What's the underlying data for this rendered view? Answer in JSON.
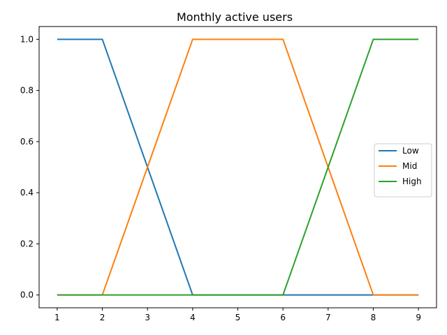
{
  "chart_data": {
    "type": "line",
    "title": "Monthly active users",
    "xlabel": "",
    "ylabel": "",
    "x": [
      1,
      2,
      3,
      4,
      5,
      6,
      7,
      8,
      9
    ],
    "xlim": [
      0.6,
      9.4
    ],
    "ylim": [
      -0.05,
      1.05
    ],
    "xticks": [
      1,
      2,
      3,
      4,
      5,
      6,
      7,
      8,
      9
    ],
    "yticks": [
      0.0,
      0.2,
      0.4,
      0.6,
      0.8,
      1.0
    ],
    "ytick_labels": [
      "0.0",
      "0.2",
      "0.4",
      "0.6",
      "0.8",
      "1.0"
    ],
    "grid": false,
    "legend_position": "right",
    "series": [
      {
        "name": "Low",
        "color": "#1f77b4",
        "values": [
          1.0,
          1.0,
          0.5,
          0.0,
          0.0,
          0.0,
          0.0,
          0.0,
          0.0
        ]
      },
      {
        "name": "Mid",
        "color": "#ff7f0e",
        "values": [
          0.0,
          0.0,
          0.5,
          1.0,
          1.0,
          1.0,
          0.5,
          0.0,
          0.0
        ]
      },
      {
        "name": "High",
        "color": "#2ca02c",
        "values": [
          0.0,
          0.0,
          0.0,
          0.0,
          0.0,
          0.0,
          0.5,
          1.0,
          1.0
        ]
      }
    ]
  }
}
